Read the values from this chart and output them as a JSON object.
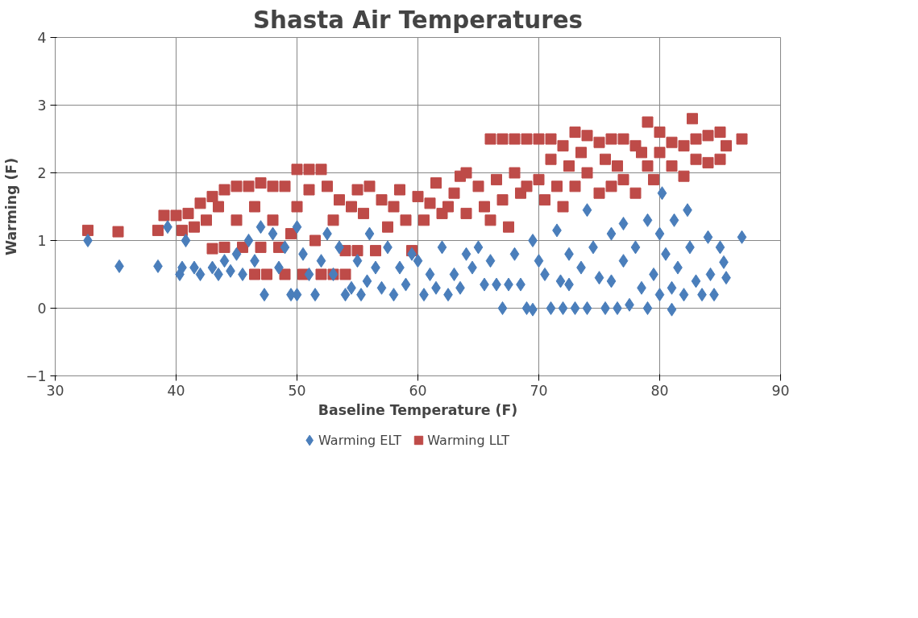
{
  "chart_data": {
    "type": "scatter",
    "title": "Shasta Air Temperatures",
    "xlabel": "Baseline Temperature (F)",
    "ylabel": "Warming (F)",
    "xlim": [
      30,
      90
    ],
    "xticks": [
      30,
      40,
      50,
      60,
      70,
      80,
      90
    ],
    "ylim": [
      -1,
      4
    ],
    "yticks": [
      -1,
      0,
      1,
      2,
      3,
      4
    ],
    "grid": true,
    "legend": "bottom",
    "series": [
      {
        "name": "Warming ELT",
        "color": "#4a7ebb",
        "marker": "diamond",
        "x": [
          32.7,
          35.3,
          38.5,
          39.3,
          40.3,
          40.5,
          40.8,
          41.5,
          42,
          43,
          43.5,
          44,
          44.5,
          45,
          45.5,
          46,
          46.5,
          47,
          47.3,
          48,
          48.5,
          49,
          49.5,
          50,
          50,
          50.5,
          51,
          51.5,
          52,
          52.5,
          53,
          53.5,
          54,
          54.5,
          55,
          55.3,
          55.8,
          56,
          56.5,
          57,
          57.5,
          58,
          58.5,
          59,
          59.5,
          60,
          60.5,
          61,
          61.5,
          62,
          62.5,
          63,
          63.5,
          64,
          64.5,
          65,
          65.5,
          66,
          66.5,
          67,
          67.5,
          68,
          68.5,
          69,
          69.5,
          69.5,
          70,
          70.5,
          71,
          71.5,
          71.8,
          72,
          72.5,
          72.5,
          73,
          73.5,
          74,
          74,
          74.5,
          75,
          75.5,
          76,
          76,
          76.5,
          77,
          77,
          77.5,
          78,
          78.5,
          79,
          79,
          79.5,
          80,
          80,
          80.2,
          80.5,
          81,
          81,
          81.2,
          81.5,
          82,
          82.3,
          82.5,
          83,
          83.5,
          84,
          84.2,
          84.5,
          85,
          85.3,
          85.5,
          86.8
        ],
        "values": [
          1.0,
          0.62,
          0.62,
          1.2,
          0.5,
          0.6,
          1.0,
          0.6,
          0.5,
          0.6,
          0.5,
          0.7,
          0.55,
          0.8,
          0.5,
          1.0,
          0.7,
          1.2,
          0.2,
          1.1,
          0.6,
          0.9,
          0.2,
          0.2,
          1.2,
          0.8,
          0.5,
          0.2,
          0.7,
          1.1,
          0.5,
          0.9,
          0.2,
          0.3,
          0.7,
          0.2,
          0.4,
          1.1,
          0.6,
          0.3,
          0.9,
          0.2,
          0.6,
          0.35,
          0.8,
          0.7,
          0.2,
          0.5,
          0.3,
          0.9,
          0.2,
          0.5,
          0.3,
          0.8,
          0.6,
          0.9,
          0.35,
          0.7,
          0.35,
          0.0,
          0.35,
          0.8,
          0.35,
          0.0,
          -0.02,
          1.0,
          0.7,
          0.5,
          0.0,
          1.15,
          0.4,
          0.0,
          0.35,
          0.8,
          0.0,
          0.6,
          1.45,
          0.0,
          0.9,
          0.45,
          0.0,
          1.1,
          0.4,
          0.0,
          1.25,
          0.7,
          0.05,
          0.9,
          0.3,
          1.3,
          0.0,
          0.5,
          0.2,
          1.1,
          1.7,
          0.8,
          0.3,
          -0.02,
          1.3,
          0.6,
          0.2,
          1.45,
          0.9,
          0.4,
          0.2,
          1.05,
          0.5,
          0.2,
          0.9,
          0.68,
          0.45,
          1.05
        ]
      },
      {
        "name": "Warming LLT",
        "color": "#be4b48",
        "marker": "square",
        "x": [
          32.7,
          35.2,
          38.5,
          39,
          40,
          40.5,
          41,
          41.5,
          42,
          42.5,
          43,
          43,
          43.5,
          44,
          44,
          45,
          45,
          45.5,
          46,
          46.5,
          46.5,
          47,
          47,
          47.5,
          48,
          48,
          48.5,
          49,
          49,
          49.5,
          50,
          50,
          50.5,
          51,
          51,
          51.5,
          52,
          52,
          52.5,
          53,
          53,
          53.5,
          54,
          54,
          54.5,
          55,
          55,
          55.5,
          56,
          56.5,
          57,
          57.5,
          58,
          58.5,
          59,
          59.5,
          60,
          60.5,
          61,
          61.5,
          62,
          62.5,
          63,
          63.5,
          64,
          64,
          65,
          65.5,
          66,
          66,
          66.5,
          67,
          67,
          67.5,
          68,
          68,
          68.5,
          69,
          69,
          70,
          70,
          70.5,
          71,
          71,
          71.5,
          72,
          72,
          72.5,
          73,
          73,
          73.5,
          74,
          74,
          75,
          75,
          75.5,
          76,
          76,
          76.5,
          77,
          77,
          78,
          78,
          78.5,
          79,
          79,
          79.5,
          80,
          80,
          81,
          81,
          82,
          82,
          82.7,
          83,
          83,
          84,
          84,
          85,
          85,
          85.5,
          86.8
        ],
        "values": [
          1.15,
          1.13,
          1.15,
          1.37,
          1.37,
          1.15,
          1.4,
          1.2,
          1.55,
          1.3,
          1.65,
          0.88,
          1.5,
          1.75,
          0.9,
          1.8,
          1.3,
          0.9,
          1.8,
          0.5,
          1.5,
          1.85,
          0.9,
          0.5,
          1.8,
          1.3,
          0.9,
          0.5,
          1.8,
          1.1,
          2.05,
          1.5,
          0.5,
          2.05,
          1.75,
          1.0,
          2.05,
          0.5,
          1.8,
          1.3,
          0.5,
          1.6,
          0.5,
          0.85,
          1.5,
          0.85,
          1.75,
          1.4,
          1.8,
          0.85,
          1.6,
          1.2,
          1.5,
          1.75,
          1.3,
          0.85,
          1.65,
          1.3,
          1.55,
          1.85,
          1.4,
          1.5,
          1.7,
          1.95,
          2.0,
          1.4,
          1.8,
          1.5,
          2.5,
          1.3,
          1.9,
          2.5,
          1.6,
          1.2,
          2.5,
          2.0,
          1.7,
          2.5,
          1.8,
          2.5,
          1.9,
          1.6,
          2.5,
          2.2,
          1.8,
          2.4,
          1.5,
          2.1,
          2.6,
          1.8,
          2.3,
          2.55,
          2.0,
          2.45,
          1.7,
          2.2,
          2.5,
          1.8,
          2.1,
          2.5,
          1.9,
          2.4,
          1.7,
          2.3,
          2.75,
          2.1,
          1.9,
          2.6,
          2.3,
          2.45,
          2.1,
          2.4,
          1.95,
          2.8,
          2.5,
          2.2,
          2.55,
          2.15,
          2.6,
          2.2,
          2.4,
          2.5
        ]
      }
    ]
  }
}
